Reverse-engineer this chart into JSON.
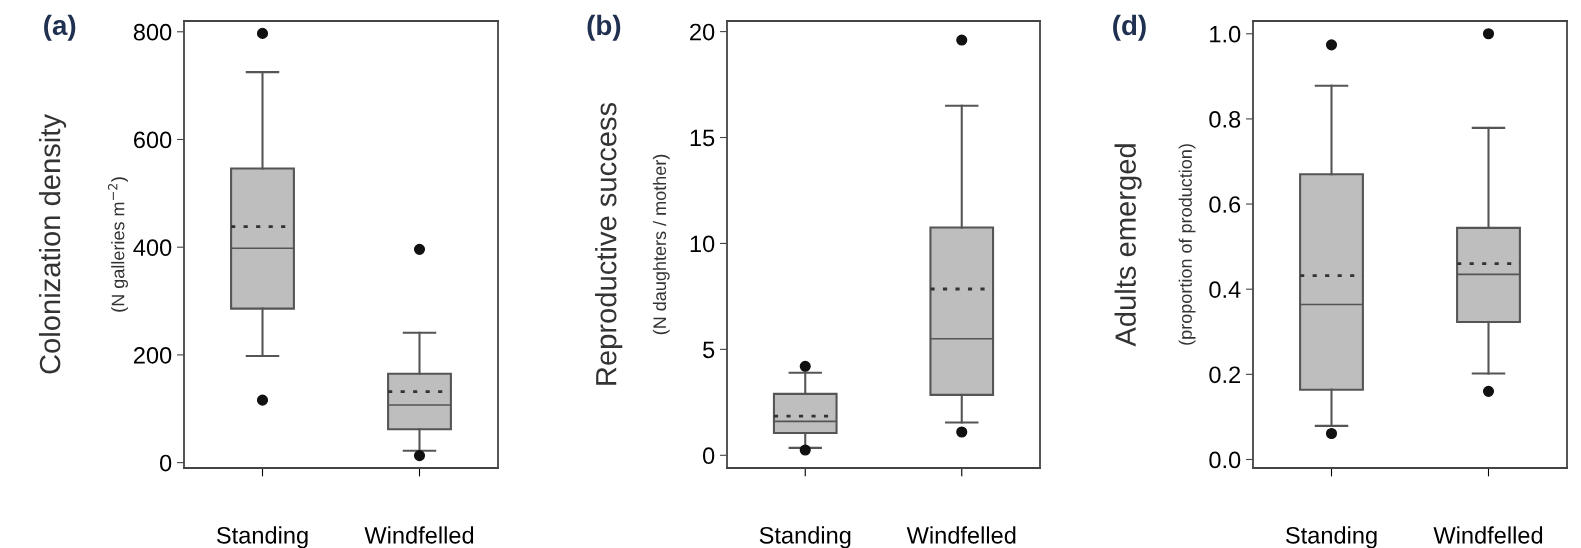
{
  "chart_data": [
    {
      "type": "box",
      "title": "(a)",
      "ylabel": "Colonization density\n(N galleries m$^{−2}$)",
      "categories": [
        "Standing",
        "Windfelled"
      ],
      "ylim": [
        -10,
        820
      ],
      "yticks": [
        0,
        200,
        400,
        600,
        800
      ],
      "marker": "circle",
      "series": [
        {
          "color": "#bebebe",
          "boxes": [
            {
              "low": 198,
              "q1": 286,
              "median": 398,
              "q3": 546,
              "high": 725,
              "mean": 438,
              "outliers": [
                797,
                116
              ]
            },
            {
              "low": 22,
              "q1": 62,
              "median": 107,
              "q3": 165,
              "high": 241,
              "mean": 132,
              "outliers": [
                396,
                13
              ]
            }
          ]
        }
      ]
    },
    {
      "type": "box",
      "title": "(b)",
      "ylabel": "Reproductive success\n(N daughters / mother)",
      "categories": [
        "Standing",
        "Windfelled"
      ],
      "ylim": [
        -0.6,
        20.5
      ],
      "yticks": [
        0,
        5,
        10,
        15,
        20
      ],
      "marker": "circle",
      "series": [
        {
          "color": "#bebebe",
          "boxes": [
            {
              "low": 0.35,
              "q1": 1.05,
              "median": 1.6,
              "q3": 2.9,
              "high": 3.9,
              "mean": 1.85,
              "outliers": [
                4.2,
                0.25
              ]
            },
            {
              "low": 1.55,
              "q1": 2.85,
              "median": 5.5,
              "q3": 10.75,
              "high": 16.5,
              "mean": 7.85,
              "outliers": [
                19.6,
                1.1
              ]
            }
          ]
        }
      ]
    },
    {
      "type": "box",
      "title": "(d)",
      "ylabel": "Adults emerged\n(proportion of production)",
      "categories": [
        "Standing",
        "Windfelled"
      ],
      "ylim": [
        -0.02,
        1.03
      ],
      "yticks": [
        {
          "value": 0,
          "label": "0.0"
        },
        0.2,
        0.4,
        0.6,
        0.8,
        {
          "value": 1,
          "label": "1.0"
        }
      ],
      "marker": "circle",
      "series": [
        {
          "color": "#bebebe",
          "boxes": [
            {
              "low": 0.079,
              "q1": 0.164,
              "median": 0.364,
              "q3": 0.67,
              "high": 0.878,
              "mean": 0.432,
              "outliers": [
                0.974,
                0.061
              ]
            },
            {
              "low": 0.202,
              "q1": 0.323,
              "median": 0.435,
              "q3": 0.544,
              "high": 0.779,
              "mean": 0.46,
              "outliers": [
                1.0,
                0.16
              ]
            }
          ]
        }
      ]
    }
  ]
}
